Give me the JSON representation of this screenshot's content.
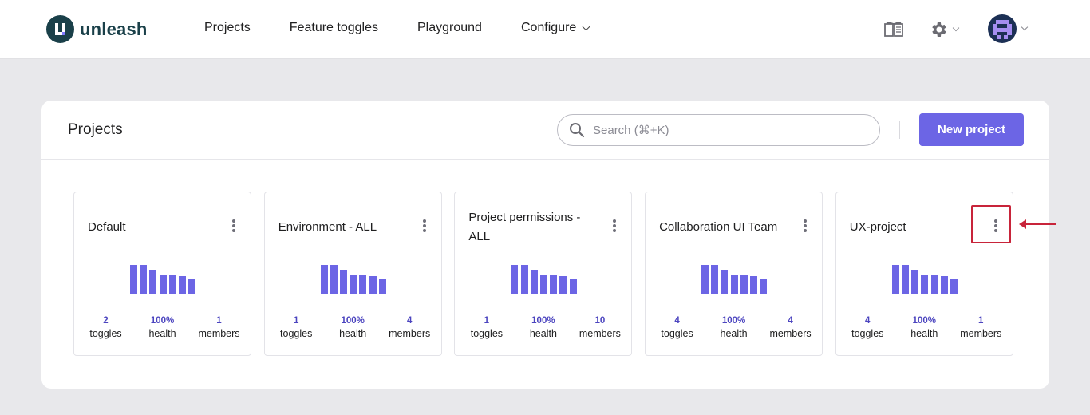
{
  "brand": {
    "name": "unleash"
  },
  "nav": {
    "items": [
      {
        "label": "Projects"
      },
      {
        "label": "Feature toggles"
      },
      {
        "label": "Playground"
      },
      {
        "label": "Configure"
      }
    ]
  },
  "panel": {
    "title": "Projects",
    "search_placeholder": "Search (⌘+K)",
    "new_project_label": "New project"
  },
  "projects": [
    {
      "name": "Default",
      "toggles": "2",
      "health": "100%",
      "members": "1"
    },
    {
      "name": "Environment - ALL",
      "toggles": "1",
      "health": "100%",
      "members": "4"
    },
    {
      "name": "Project permissions - ALL",
      "toggles": "1",
      "health": "100%",
      "members": "10"
    },
    {
      "name": "Collaboration UI Team",
      "toggles": "4",
      "health": "100%",
      "members": "4"
    },
    {
      "name": "UX-project",
      "toggles": "4",
      "health": "100%",
      "members": "1"
    }
  ],
  "stat_labels": {
    "toggles": "toggles",
    "health": "health",
    "members": "members"
  },
  "colors": {
    "accent": "#6c65e5",
    "brand_dark": "#1a4049",
    "annotation": "#c8243a"
  }
}
